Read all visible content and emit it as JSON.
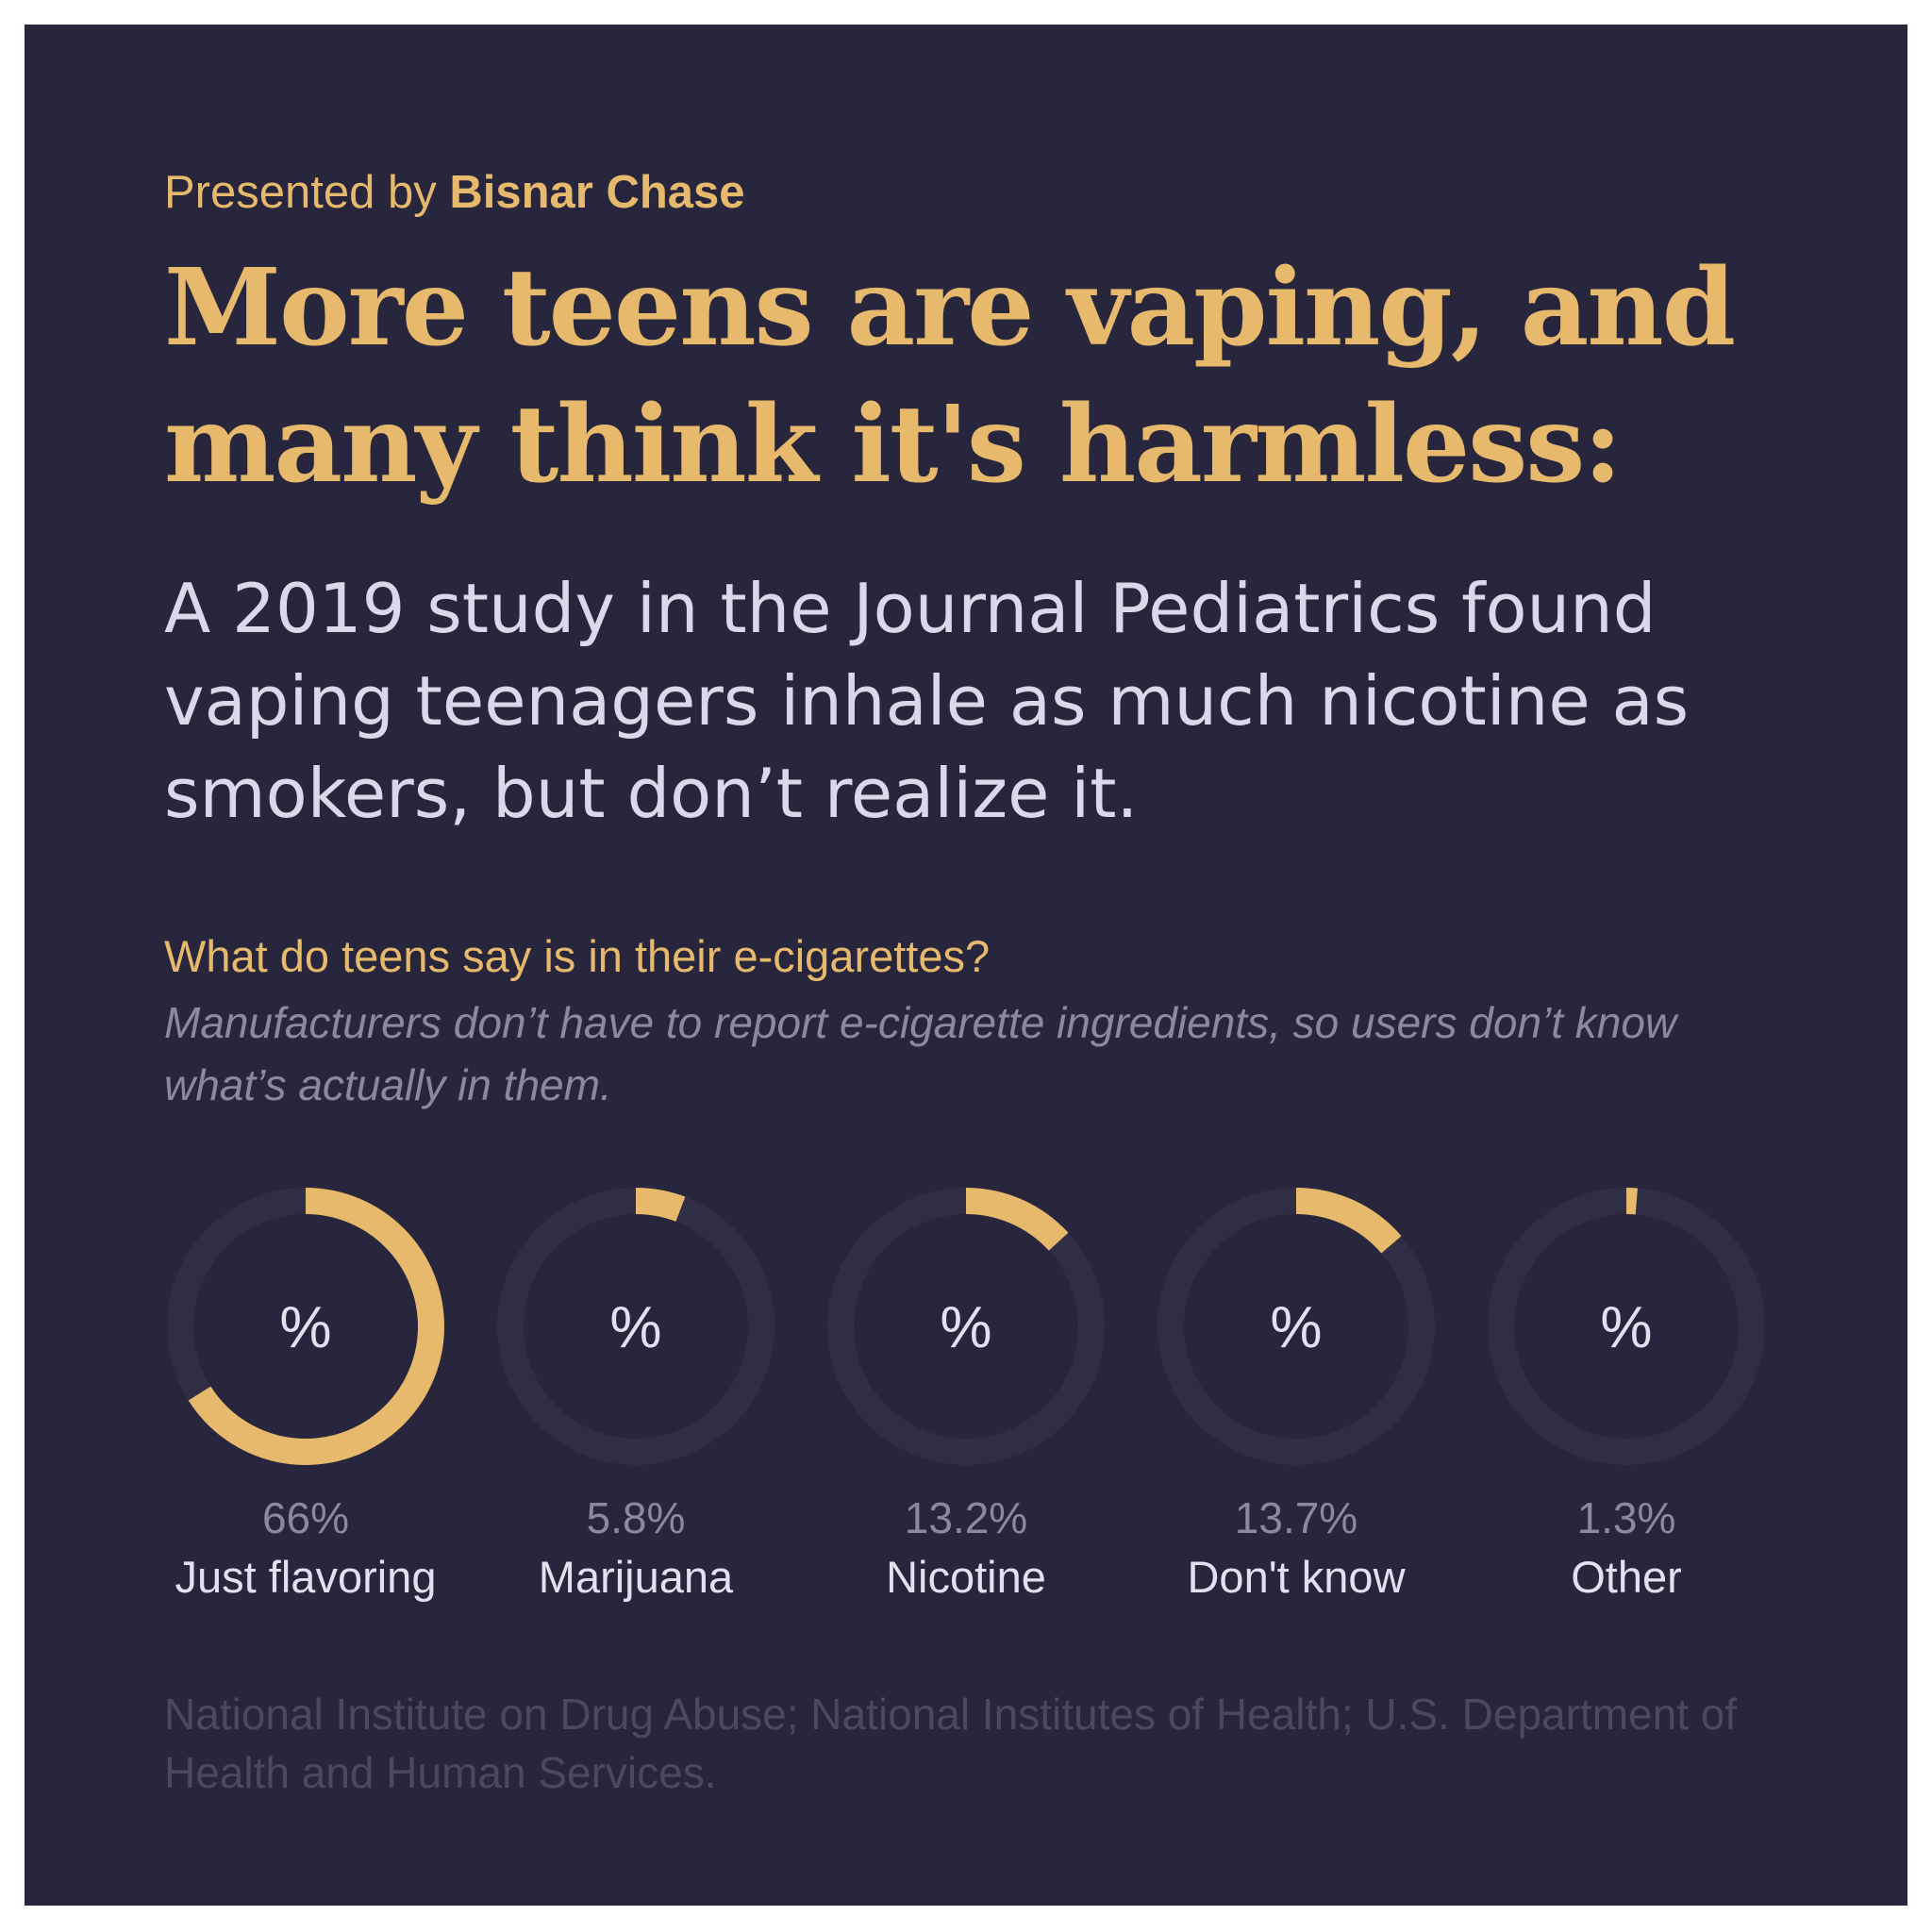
{
  "presented": {
    "prefix": "Presented by",
    "brand": "Bisnar Chase"
  },
  "headline": {
    "line1": "More teens are vaping, and",
    "line2": "many think it's harmless:"
  },
  "lede": {
    "line1": "A 2019 study in the Journal Pediatrics found",
    "line2": "vaping teenagers inhale as much nicotine as",
    "line3": "smokers, but don’t realize it."
  },
  "question": "What do teens say is in their e-cigarettes?",
  "note": {
    "line1": "Manufacturers don’t have to report e-cigarette ingredients, so users don’t know",
    "line2": "what’s actually in them."
  },
  "source": {
    "line1": "National Institute on Drug Abuse; National Institutes of Health; U.S. Department of",
    "line2": "Health and Human Services."
  },
  "colors": {
    "background": "#28263c",
    "accent": "#e6b96c",
    "ring_track": "#302e44"
  },
  "chart_data": {
    "type": "donut",
    "center_symbol": "%",
    "categories": [
      "Just flavoring",
      "Marijuana",
      "Nicotine",
      "Don't know",
      "Other"
    ],
    "values": [
      66,
      5.8,
      13.2,
      13.7,
      1.3
    ],
    "value_labels": [
      "66%",
      "5.8%",
      "13.2%",
      "13.7%",
      "1.3%"
    ],
    "unit": "%",
    "max": 100
  }
}
